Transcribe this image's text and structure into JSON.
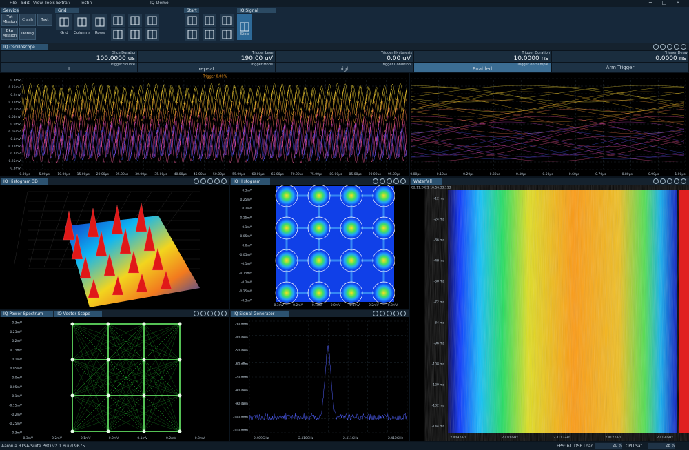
{
  "menu": {
    "items": [
      "File",
      "Edit",
      "View",
      "Tools",
      "Extras",
      "?",
      "Testing"
    ],
    "title": "IQ-Demo"
  },
  "ribbon": {
    "service": {
      "title": "Service",
      "buttons": [
        "Txt Mission",
        "Crash",
        "Text",
        "Bkp Mission",
        "Debug"
      ]
    },
    "grid_editor": {
      "title": "Grid Editor",
      "buttons": [
        "Grid",
        "Columns",
        "Rows"
      ]
    },
    "start": {
      "title": "Start"
    },
    "signal_generator": {
      "title": "IQ Signal Generator",
      "buttons": [
        "Stop"
      ]
    }
  },
  "oscilloscope": {
    "tab": "IQ Oscilloscope",
    "params": [
      {
        "label": "Slice Duration",
        "value": "100.0000 us"
      },
      {
        "label": "Trigger Level",
        "value": "190.00 uV"
      },
      {
        "label": "Trigger Hysteresis",
        "value": "0.00 uV"
      },
      {
        "label": "Trigger Duration",
        "value": "10.0000 ns"
      },
      {
        "label": "Trigger Delay",
        "value": "0.0000 ns"
      }
    ],
    "controls": [
      {
        "label": "Trigger Source",
        "value": "I"
      },
      {
        "label": "Trigger Mode",
        "value": "repeat"
      },
      {
        "label": "Trigger Condition",
        "value": "high"
      },
      {
        "label": "Trigger on Sample",
        "value": "Enabled"
      }
    ],
    "arm_button": "Arm Trigger",
    "trigger_text": "Trigger 0.00%",
    "yticks": [
      "0.3mV",
      "0.25mV",
      "0.2mV",
      "0.15mV",
      "0.1mV",
      "0.05mV",
      "0.0mV",
      "-0.05mV",
      "-0.1mV",
      "-0.15mV",
      "-0.2mV",
      "-0.25mV",
      "-0.3mV"
    ],
    "xticks": [
      "0.00µs",
      "5.00µs",
      "10.00µs",
      "15.00µs",
      "20.00µs",
      "25.00µs",
      "30.00µs",
      "35.00µs",
      "40.00µs",
      "45.00µs",
      "50.00µs",
      "55.00µs",
      "60.00µs",
      "65.00µs",
      "70.00µs",
      "75.00µs",
      "80.00µs",
      "85.00µs",
      "90.00µs",
      "95.00µs"
    ],
    "xticks_detail": [
      "0.00µs",
      "0.10µs",
      "0.20µs",
      "0.30µs",
      "0.40µs",
      "0.50µs",
      "0.60µs",
      "0.70µs",
      "0.80µs",
      "0.90µs",
      "1.00µs"
    ]
  },
  "histogram3d": {
    "tab": "IQ Histogram 3D"
  },
  "histogram": {
    "tab": "IQ Histogram",
    "yticks": [
      "0.3mV",
      "0.25mV",
      "0.2mV",
      "0.15mV",
      "0.1mV",
      "0.05mV",
      "0.0mV",
      "-0.05mV",
      "-0.1mV",
      "-0.15mV",
      "-0.2mV",
      "-0.25mV",
      "-0.3mV"
    ],
    "xticks": [
      "-0.3mV",
      "-0.2mV",
      "-0.1mV",
      "0.0mV",
      "0.1mV",
      "0.2mV",
      "0.3mV"
    ]
  },
  "waterfall": {
    "tab": "Waterfall",
    "timestamp": "02.11.2021 16:56:33.113",
    "yticks": [
      "-12 ms",
      "-24 ms",
      "-36 ms",
      "-48 ms",
      "-60 ms",
      "-72 ms",
      "-84 ms",
      "-96 ms",
      "-108 ms",
      "-120 ms",
      "-132 ms",
      "-144 ms"
    ],
    "xticks": [
      "2.409 GHz",
      "2.410 GHz",
      "2.411 GHz",
      "2.412 GHz",
      "2.413 GHz"
    ]
  },
  "vector_scope": {
    "tabs": [
      "IQ Power Spectrum",
      "IQ Vector Scope"
    ],
    "yticks": [
      "0.3mV",
      "0.25mV",
      "0.2mV",
      "0.15mV",
      "0.1mV",
      "0.05mV",
      "0.0mV",
      "-0.05mV",
      "-0.1mV",
      "-0.15mV",
      "-0.2mV",
      "-0.25mV",
      "-0.3mV"
    ],
    "xticks": [
      "-0.3mV",
      "-0.2mV",
      "-0.1mV",
      "0.0mV",
      "0.1mV",
      "0.2mV",
      "0.3mV"
    ]
  },
  "signal_generator": {
    "tab": "IQ Signal Generator",
    "yticks": [
      "-30 dBm",
      "-40 dBm",
      "-50 dBm",
      "-60 dBm",
      "-70 dBm",
      "-80 dBm",
      "-90 dBm",
      "-100 dBm",
      "-110 dBm"
    ],
    "xticks": [
      "2.409GHz",
      "2.410GHz",
      "2.411GHz",
      "2.412GHz"
    ]
  },
  "status": {
    "app": "Aaronia RTSA-Suite PRO v2.1 Build 9675",
    "fps": "FPS: 61",
    "dsp": "DSP Load",
    "dsp_value": "20 %",
    "cpu": "CPU Sat",
    "cpu_value": "28 %"
  }
}
